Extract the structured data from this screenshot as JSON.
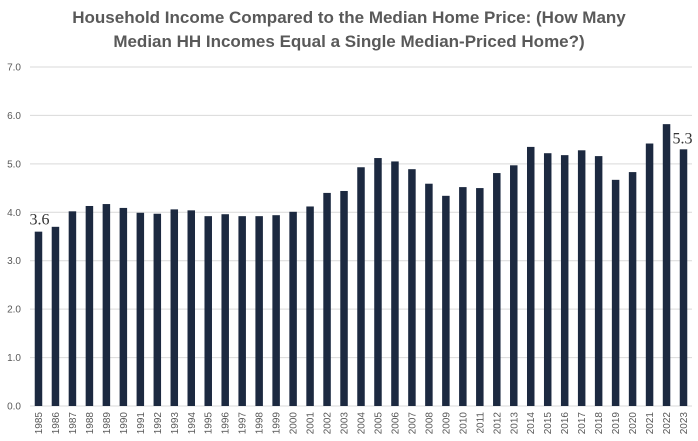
{
  "chart_data": {
    "type": "bar",
    "title_line1": "Household Income Compared to the Median Home Price: (How Many",
    "title_line2": "Median HH Incomes Equal a Single Median-Priced Home?)",
    "categories": [
      "1985",
      "1986",
      "1987",
      "1988",
      "1989",
      "1990",
      "1991",
      "1992",
      "1993",
      "1994",
      "1995",
      "1996",
      "1997",
      "1998",
      "1999",
      "2000",
      "2001",
      "2002",
      "2003",
      "2004",
      "2005",
      "2006",
      "2007",
      "2008",
      "2009",
      "2010",
      "2011",
      "2012",
      "2013",
      "2014",
      "2015",
      "2016",
      "2017",
      "2018",
      "2019",
      "2020",
      "2021",
      "2022",
      "2023"
    ],
    "values": [
      3.6,
      3.7,
      4.02,
      4.13,
      4.17,
      4.09,
      3.99,
      3.97,
      4.06,
      4.04,
      3.92,
      3.96,
      3.92,
      3.92,
      3.94,
      4.01,
      4.12,
      4.4,
      4.44,
      4.93,
      5.12,
      5.05,
      4.89,
      4.59,
      4.34,
      4.52,
      4.5,
      4.81,
      4.97,
      5.35,
      5.22,
      5.18,
      5.28,
      5.16,
      4.67,
      4.83,
      5.42,
      5.82,
      5.3
    ],
    "yticks": [
      "0.0",
      "1.0",
      "2.0",
      "3.0",
      "4.0",
      "5.0",
      "6.0",
      "7.0"
    ],
    "ylim": [
      0,
      7
    ],
    "grid": true,
    "bar_color": "#1c2940",
    "grid_color": "#d9d9d9",
    "data_labels": [
      {
        "index": 0,
        "text": "3.6"
      },
      {
        "index": 38,
        "text": "5.3"
      }
    ],
    "xlabel": "",
    "ylabel": ""
  }
}
